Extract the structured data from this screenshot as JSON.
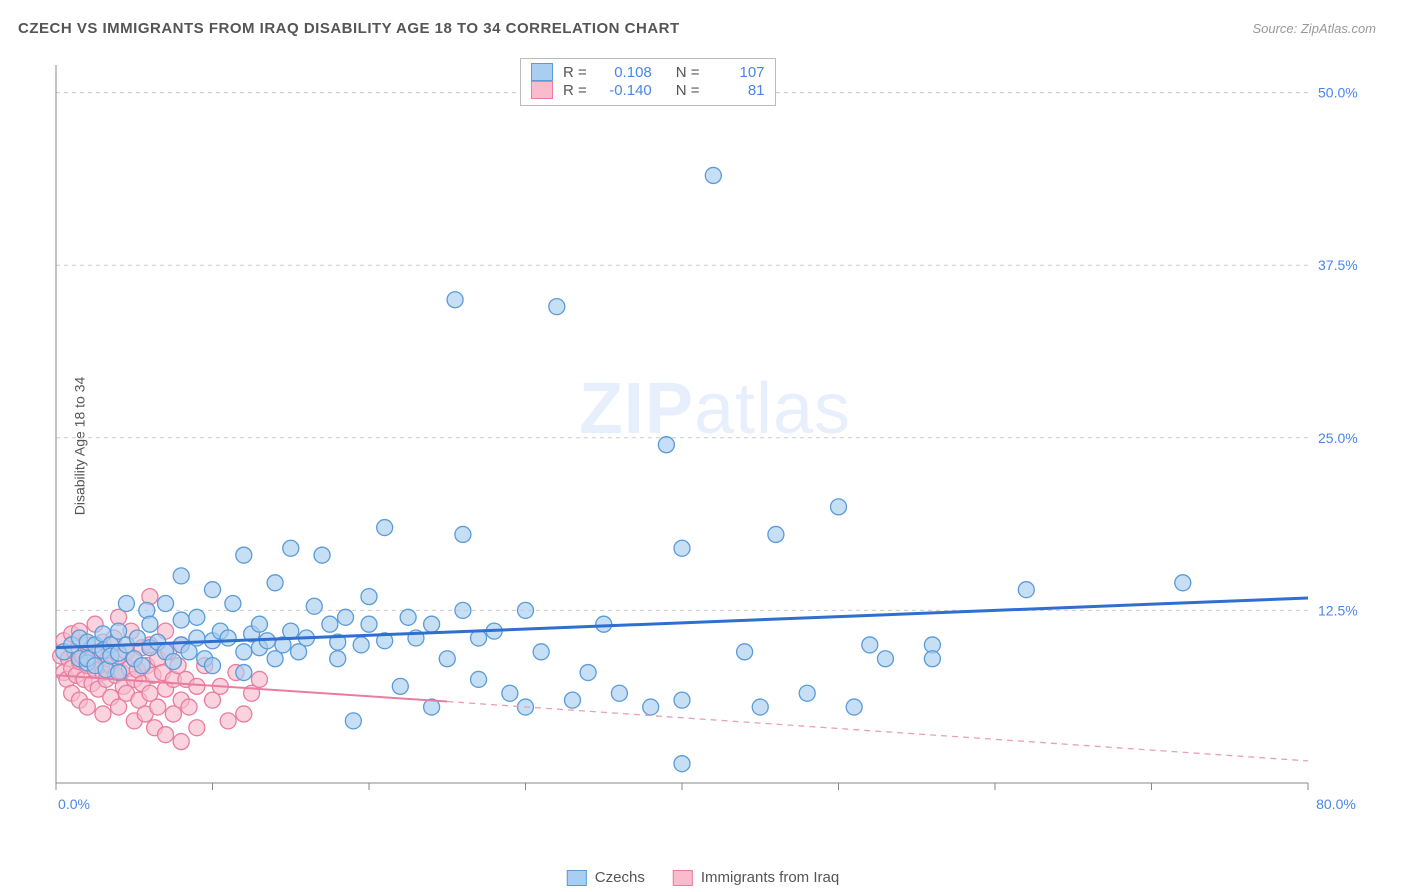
{
  "title": "CZECH VS IMMIGRANTS FROM IRAQ DISABILITY AGE 18 TO 34 CORRELATION CHART",
  "source": "Source: ZipAtlas.com",
  "y_axis_title": "Disability Age 18 to 34",
  "watermark_bold": "ZIP",
  "watermark_rest": "atlas",
  "chart": {
    "type": "scatter",
    "xlim": [
      0,
      80
    ],
    "ylim": [
      0,
      52
    ],
    "x_ticks": [
      0,
      10,
      20,
      30,
      40,
      50,
      60,
      70,
      80
    ],
    "x_tick_labels_shown": {
      "0": "0.0%",
      "80": "80.0%"
    },
    "y_ticks": [
      12.5,
      25.0,
      37.5,
      50.0
    ],
    "y_tick_labels": [
      "12.5%",
      "25.0%",
      "37.5%",
      "50.0%"
    ],
    "grid_color": "#cccccc",
    "grid_dash": "4 4",
    "background_color": "#ffffff",
    "marker_radius": 8,
    "colors": {
      "blue_fill": "#a9cef0",
      "blue_stroke": "#5a9bd8",
      "pink_fill": "#f8bccc",
      "pink_stroke": "#e87da0",
      "trend_blue": "#2f6fd0",
      "trend_pink": "#e87da0",
      "axis_label": "#4a86e8"
    },
    "legend_stats": [
      {
        "color": "blue",
        "R": "0.108",
        "N": "107"
      },
      {
        "color": "pink",
        "R": "-0.140",
        "N": "81"
      }
    ],
    "series_legend": [
      {
        "color": "blue",
        "label": "Czechs"
      },
      {
        "color": "pink",
        "label": "Immigrants from Iraq"
      }
    ],
    "trend_lines": {
      "blue": {
        "x1": 0,
        "y1": 9.8,
        "x2": 80,
        "y2": 13.4
      },
      "pink_solid": {
        "x1": 0,
        "y1": 7.8,
        "x2": 25,
        "y2": 5.9
      },
      "pink_dash": {
        "x1": 25,
        "y1": 5.9,
        "x2": 80,
        "y2": 1.6
      }
    },
    "data_blue": [
      [
        0.5,
        9.5
      ],
      [
        1,
        10
      ],
      [
        1.5,
        9
      ],
      [
        1.5,
        10.5
      ],
      [
        2,
        8.7
      ],
      [
        2,
        10.2
      ],
      [
        2,
        9
      ],
      [
        2.5,
        10
      ],
      [
        2.5,
        8.5
      ],
      [
        3,
        9.6
      ],
      [
        3,
        10.8
      ],
      [
        3.2,
        8.2
      ],
      [
        3.5,
        10
      ],
      [
        3.5,
        9.2
      ],
      [
        4,
        11
      ],
      [
        4,
        9.4
      ],
      [
        4,
        8
      ],
      [
        4.5,
        10
      ],
      [
        4.5,
        13
      ],
      [
        5,
        9
      ],
      [
        5.2,
        10.5
      ],
      [
        5.5,
        8.5
      ],
      [
        5.8,
        12.5
      ],
      [
        6,
        9.8
      ],
      [
        6,
        11.5
      ],
      [
        6.5,
        10.2
      ],
      [
        7,
        9.5
      ],
      [
        7,
        13
      ],
      [
        7.5,
        8.8
      ],
      [
        8,
        10
      ],
      [
        8,
        11.8
      ],
      [
        8,
        15
      ],
      [
        8.5,
        9.5
      ],
      [
        9,
        10.5
      ],
      [
        9,
        12
      ],
      [
        9.5,
        9
      ],
      [
        10,
        10.3
      ],
      [
        10,
        8.5
      ],
      [
        10,
        14
      ],
      [
        10.5,
        11
      ],
      [
        11,
        10.5
      ],
      [
        11.3,
        13
      ],
      [
        12,
        9.5
      ],
      [
        12,
        8
      ],
      [
        12,
        16.5
      ],
      [
        12.5,
        10.8
      ],
      [
        13,
        11.5
      ],
      [
        13,
        9.8
      ],
      [
        13.5,
        10.3
      ],
      [
        14,
        9
      ],
      [
        14,
        14.5
      ],
      [
        14.5,
        10
      ],
      [
        15,
        11
      ],
      [
        15,
        17
      ],
      [
        15.5,
        9.5
      ],
      [
        16,
        10.5
      ],
      [
        16.5,
        12.8
      ],
      [
        17,
        16.5
      ],
      [
        17.5,
        11.5
      ],
      [
        18,
        9
      ],
      [
        18,
        10.2
      ],
      [
        18.5,
        12
      ],
      [
        19,
        4.5
      ],
      [
        19.5,
        10
      ],
      [
        20,
        11.5
      ],
      [
        20,
        13.5
      ],
      [
        21,
        10.3
      ],
      [
        21,
        18.5
      ],
      [
        22,
        7
      ],
      [
        22.5,
        12
      ],
      [
        23,
        10.5
      ],
      [
        24,
        11.5
      ],
      [
        24,
        5.5
      ],
      [
        25,
        9
      ],
      [
        25.5,
        35
      ],
      [
        26,
        12.5
      ],
      [
        26,
        18
      ],
      [
        27,
        7.5
      ],
      [
        27,
        10.5
      ],
      [
        28,
        11
      ],
      [
        29,
        6.5
      ],
      [
        30,
        12.5
      ],
      [
        30,
        5.5
      ],
      [
        31,
        9.5
      ],
      [
        32,
        34.5
      ],
      [
        33,
        6
      ],
      [
        34,
        8
      ],
      [
        35,
        11.5
      ],
      [
        36,
        6.5
      ],
      [
        38,
        5.5
      ],
      [
        39,
        24.5
      ],
      [
        40,
        6
      ],
      [
        40,
        17
      ],
      [
        42,
        44
      ],
      [
        44,
        9.5
      ],
      [
        45,
        5.5
      ],
      [
        46,
        18
      ],
      [
        48,
        6.5
      ],
      [
        50,
        20
      ],
      [
        51,
        5.5
      ],
      [
        52,
        10
      ],
      [
        53,
        9
      ],
      [
        56,
        10
      ],
      [
        56,
        9
      ],
      [
        62,
        14
      ],
      [
        72,
        14.5
      ],
      [
        40,
        1.4
      ]
    ],
    "data_pink": [
      [
        0.3,
        9.2
      ],
      [
        0.5,
        8
      ],
      [
        0.5,
        10.3
      ],
      [
        0.7,
        7.5
      ],
      [
        0.8,
        9
      ],
      [
        1,
        8.3
      ],
      [
        1,
        10.8
      ],
      [
        1,
        6.5
      ],
      [
        1.2,
        9.5
      ],
      [
        1.3,
        7.8
      ],
      [
        1.5,
        8.8
      ],
      [
        1.5,
        11
      ],
      [
        1.5,
        6
      ],
      [
        1.7,
        9.2
      ],
      [
        1.8,
        7.5
      ],
      [
        2,
        8.5
      ],
      [
        2,
        10
      ],
      [
        2,
        5.5
      ],
      [
        2.2,
        9
      ],
      [
        2.3,
        7.2
      ],
      [
        2.5,
        8.2
      ],
      [
        2.5,
        11.5
      ],
      [
        2.7,
        6.8
      ],
      [
        2.8,
        9.5
      ],
      [
        3,
        8
      ],
      [
        3,
        10.2
      ],
      [
        3,
        5
      ],
      [
        3.2,
        7.5
      ],
      [
        3.3,
        9
      ],
      [
        3.5,
        8.5
      ],
      [
        3.5,
        6.2
      ],
      [
        3.7,
        10.5
      ],
      [
        3.8,
        7.8
      ],
      [
        4,
        9.2
      ],
      [
        4,
        5.5
      ],
      [
        4,
        12
      ],
      [
        4.2,
        8
      ],
      [
        4.3,
        7
      ],
      [
        4.5,
        9.5
      ],
      [
        4.5,
        6.5
      ],
      [
        4.7,
        8.3
      ],
      [
        4.8,
        11
      ],
      [
        5,
        7.5
      ],
      [
        5,
        9
      ],
      [
        5,
        4.5
      ],
      [
        5.2,
        8.2
      ],
      [
        5.3,
        6
      ],
      [
        5.5,
        9.8
      ],
      [
        5.5,
        7.2
      ],
      [
        5.7,
        5
      ],
      [
        5.8,
        8.5
      ],
      [
        6,
        10
      ],
      [
        6,
        6.5
      ],
      [
        6,
        13.5
      ],
      [
        6.2,
        7.8
      ],
      [
        6.3,
        4
      ],
      [
        6.5,
        9
      ],
      [
        6.5,
        5.5
      ],
      [
        6.8,
        8
      ],
      [
        7,
        6.8
      ],
      [
        7,
        11
      ],
      [
        7,
        3.5
      ],
      [
        7.2,
        9.5
      ],
      [
        7.5,
        7.5
      ],
      [
        7.5,
        5
      ],
      [
        7.8,
        8.5
      ],
      [
        8,
        6
      ],
      [
        8,
        10
      ],
      [
        8,
        3
      ],
      [
        8.3,
        7.5
      ],
      [
        8.5,
        5.5
      ],
      [
        9,
        7
      ],
      [
        9,
        4
      ],
      [
        9.5,
        8.5
      ],
      [
        10,
        6
      ],
      [
        10.5,
        7
      ],
      [
        11,
        4.5
      ],
      [
        11.5,
        8
      ],
      [
        12,
        5
      ],
      [
        12.5,
        6.5
      ],
      [
        13,
        7.5
      ]
    ]
  }
}
